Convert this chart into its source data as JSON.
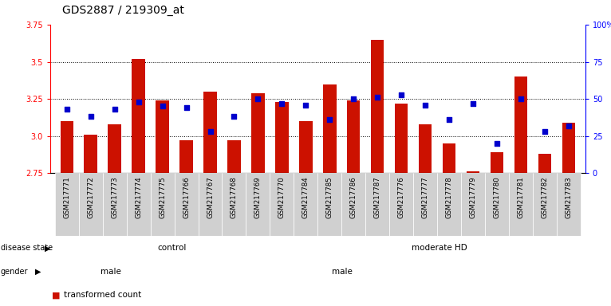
{
  "title": "GDS2887 / 219309_at",
  "samples": [
    "GSM217771",
    "GSM217772",
    "GSM217773",
    "GSM217774",
    "GSM217775",
    "GSM217766",
    "GSM217767",
    "GSM217768",
    "GSM217769",
    "GSM217770",
    "GSM217784",
    "GSM217785",
    "GSM217786",
    "GSM217787",
    "GSM217776",
    "GSM217777",
    "GSM217778",
    "GSM217779",
    "GSM217780",
    "GSM217781",
    "GSM217782",
    "GSM217783"
  ],
  "red_values": [
    3.1,
    3.01,
    3.08,
    3.52,
    3.24,
    2.97,
    3.3,
    2.97,
    3.29,
    3.23,
    3.1,
    3.35,
    3.24,
    3.65,
    3.22,
    3.08,
    2.95,
    2.76,
    2.89,
    3.4,
    2.88,
    3.09
  ],
  "blue_pct": [
    43,
    38,
    43,
    48,
    45,
    44,
    28,
    38,
    50,
    47,
    46,
    36,
    50,
    51,
    53,
    46,
    36,
    47,
    20,
    50,
    28,
    32
  ],
  "y_min": 2.75,
  "y_max": 3.75,
  "y_ticks_red": [
    2.75,
    3.0,
    3.25,
    3.5,
    3.75
  ],
  "y_ticks_blue_pct": [
    0,
    25,
    50,
    75,
    100
  ],
  "bar_color": "#cc1100",
  "dot_color": "#0000cc",
  "grid_color": "#000000",
  "control_color": "#90ee90",
  "moderate_hd_color": "#3ec83e",
  "male_color": "#f0b0f0",
  "female_color": "#cc55cc",
  "sample_bg_color": "#d0d0d0",
  "title_fontsize": 10,
  "tick_fontsize": 7,
  "label_fontsize": 7,
  "annot_fontsize": 7.5
}
